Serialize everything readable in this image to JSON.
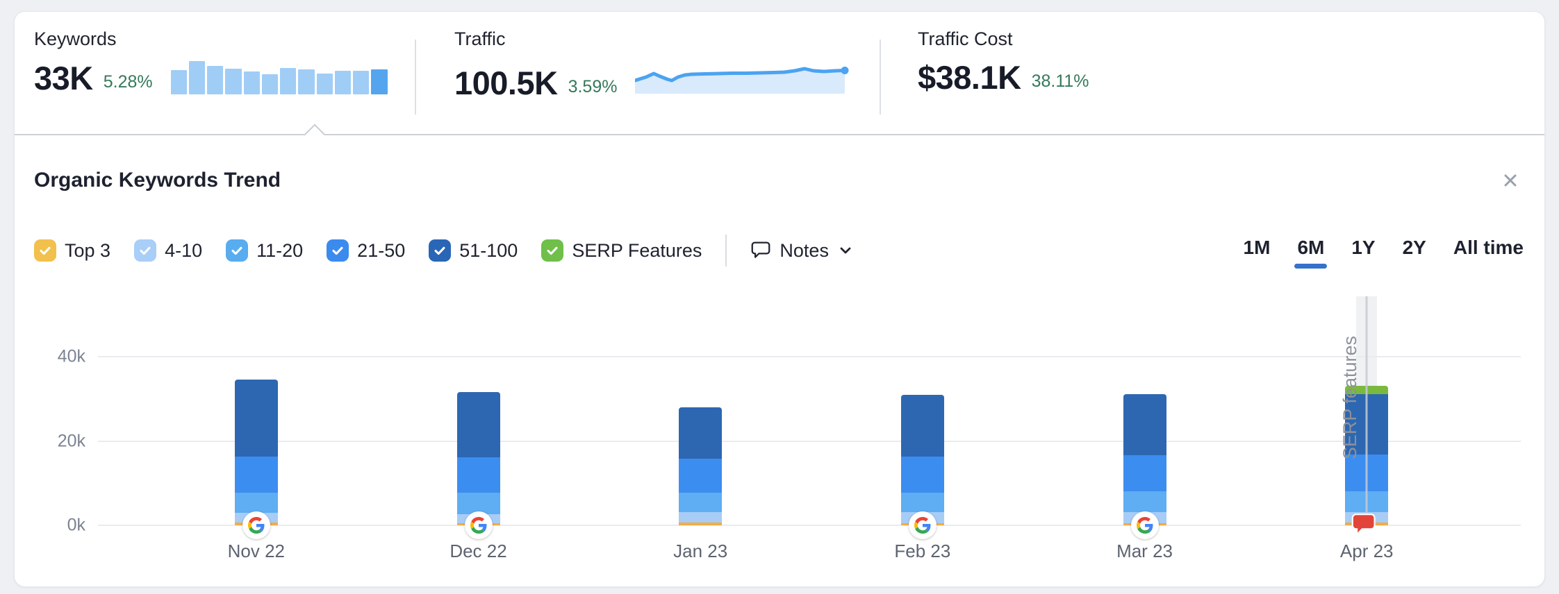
{
  "colors": {
    "page_background": "#eef0f4",
    "card_background": "#ffffff",
    "positive_change": "#35795b",
    "selected_tab_underline": "#3572cb",
    "spark_bar": "#a0cdf6",
    "spark_bar_accent": "#54a5ee",
    "spark_line": "#4ba3f1",
    "spark_fill": "#d9eafc",
    "note_marker": "#e2443a"
  },
  "icons": {
    "notes": "speech-bubble-flag",
    "chevron_down": "v",
    "close": "x",
    "checkbox_check": "check",
    "google_update": "google-g",
    "note_marker": "red-speech-bubble-flag"
  },
  "metrics": {
    "keywords": {
      "label": "Keywords",
      "value": "33K",
      "change": "5.28%",
      "spark_bars": [
        72,
        100,
        86,
        78,
        69,
        61,
        80,
        74,
        62,
        71,
        71,
        75
      ],
      "selected": true
    },
    "traffic": {
      "label": "Traffic",
      "value": "100.5K",
      "change": "3.59%",
      "spark_points": [
        [
          0,
          28
        ],
        [
          16,
          23
        ],
        [
          27,
          18
        ],
        [
          36,
          22
        ],
        [
          46,
          26
        ],
        [
          53,
          28
        ],
        [
          62,
          23
        ],
        [
          72,
          20
        ],
        [
          82,
          19
        ],
        [
          100,
          18.5
        ],
        [
          120,
          18
        ],
        [
          140,
          17.5
        ],
        [
          160,
          17.5
        ],
        [
          180,
          17
        ],
        [
          200,
          16.5
        ],
        [
          215,
          16
        ],
        [
          230,
          14
        ],
        [
          244,
          11
        ],
        [
          257,
          14
        ],
        [
          272,
          15
        ],
        [
          288,
          14
        ],
        [
          302,
          13.5
        ]
      ]
    },
    "traffic_cost": {
      "label": "Traffic Cost",
      "value": "$38.1K",
      "change": "38.11%"
    }
  },
  "chart_panel": {
    "title": "Organic Keywords Trend",
    "notes_label": "Notes",
    "legend": [
      {
        "label": "Top 3",
        "color": "#f2c04d",
        "checked": true
      },
      {
        "label": "4-10",
        "color": "#a9cef7",
        "checked": true
      },
      {
        "label": "11-20",
        "color": "#58acf0",
        "checked": true
      },
      {
        "label": "21-50",
        "color": "#3b8bef",
        "checked": true
      },
      {
        "label": "51-100",
        "color": "#2a66b6",
        "checked": true
      },
      {
        "label": "SERP Features",
        "color": "#6fbf49",
        "checked": true
      }
    ],
    "ranges": {
      "options": [
        "1M",
        "6M",
        "1Y",
        "2Y",
        "All time"
      ],
      "selected": "6M"
    }
  },
  "chart_data": {
    "type": "bar",
    "stacked": true,
    "title": "Organic Keywords Trend",
    "unit": "thousands of keywords",
    "categories": [
      "Nov 22",
      "Dec 22",
      "Jan 23",
      "Feb 23",
      "Mar 23",
      "Apr 23"
    ],
    "series": [
      {
        "name": "Top 3",
        "color": "#f2ab45",
        "values": [
          0.7,
          0.5,
          0.6,
          0.5,
          0.5,
          0.6
        ]
      },
      {
        "name": "4-10",
        "color": "#a7cdf6",
        "values": [
          2.3,
          2.1,
          2.5,
          2.6,
          2.6,
          2.5
        ]
      },
      {
        "name": "11-20",
        "color": "#5fadf2",
        "values": [
          4.8,
          5.2,
          4.7,
          4.7,
          4.9,
          5.0
        ]
      },
      {
        "name": "21-50",
        "color": "#3c8df0",
        "values": [
          8.6,
          8.4,
          8.0,
          8.5,
          8.7,
          8.7
        ]
      },
      {
        "name": "51-100",
        "color": "#2d67b2",
        "values": [
          18.2,
          15.5,
          12.2,
          14.7,
          14.5,
          14.4
        ]
      },
      {
        "name": "SERP Features",
        "color": "#7ab93e",
        "values": [
          0,
          0,
          0,
          0,
          0,
          1.9
        ]
      }
    ],
    "ylim": [
      0,
      54.4
    ],
    "yticks": [
      {
        "value": 0,
        "label": "0k"
      },
      {
        "value": 20,
        "label": "20k"
      },
      {
        "value": 40,
        "label": "40k"
      }
    ],
    "grid": "horizontal",
    "legend_position": "top-left",
    "google_update_markers": [
      "Nov 22",
      "Dec 22",
      "Feb 23",
      "Mar 23"
    ],
    "annotation": {
      "category": "Apr 23",
      "label": "SERP features",
      "marker": "red-note"
    }
  }
}
